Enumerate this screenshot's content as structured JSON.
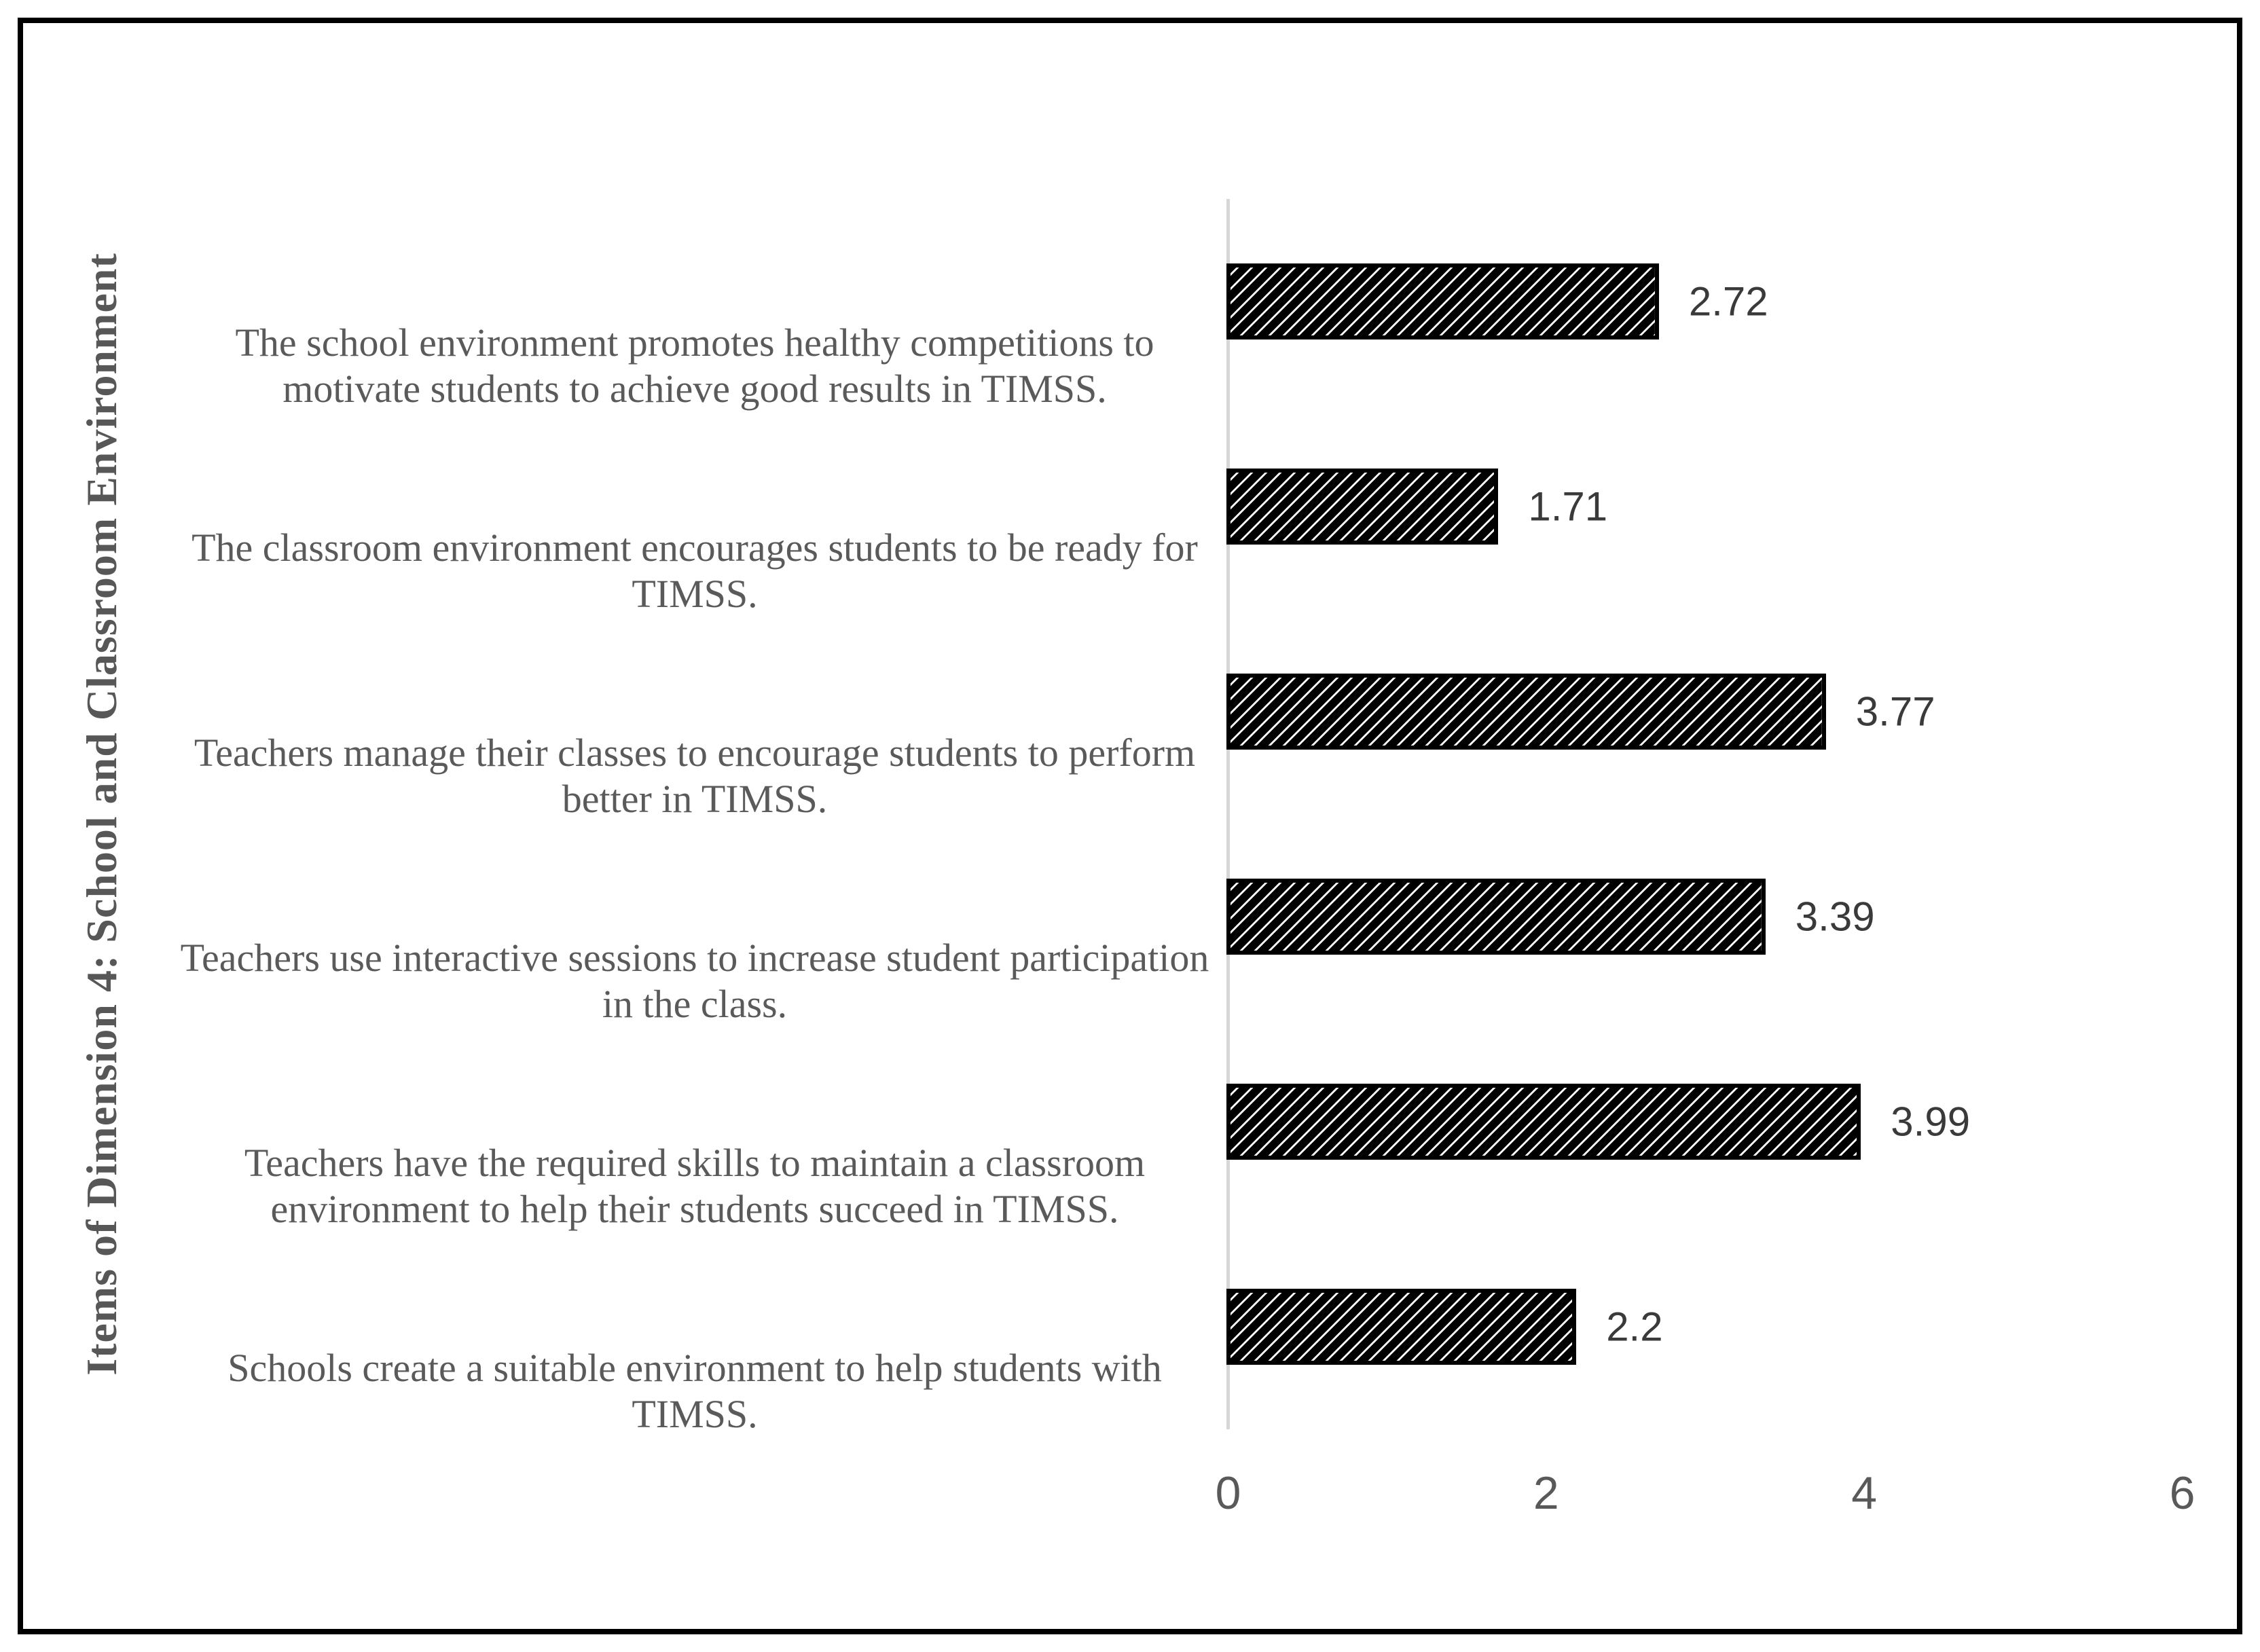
{
  "chart_data": {
    "type": "bar",
    "orientation": "horizontal",
    "title": "",
    "ylabel": "Items of Dimension 4: School and Classroom Environment",
    "xlabel": "",
    "xlim": [
      0,
      6
    ],
    "x_ticks": [
      "0",
      "2",
      "4",
      "6"
    ],
    "x_tick_values": [
      0,
      2,
      4,
      6
    ],
    "grid": "off",
    "legend": "none",
    "bar_fill_style": "black diagonal hatch on white",
    "categories": [
      "The school environment promotes healthy competitions to motivate students to achieve good results in TIMSS.",
      "The classroom environment encourages students to be ready for TIMSS.",
      "Teachers manage their classes to encourage students to perform better in TIMSS.",
      "Teachers use interactive sessions to increase student participation in the class.",
      "Teachers have the required skills to maintain a classroom environment to help their students succeed in TIMSS.",
      "Schools create a suitable environment to help students with TIMSS."
    ],
    "categories_wrapped": [
      {
        "line1": "The school environment promotes healthy competitions to",
        "line2": "motivate students to achieve good results in TIMSS."
      },
      {
        "line1": "The classroom environment encourages students to be ready for",
        "line2": "TIMSS."
      },
      {
        "line1": "Teachers manage their classes to encourage students to perform",
        "line2": "better in TIMSS."
      },
      {
        "line1": "Teachers use interactive sessions to increase student participation",
        "line2": "in the class."
      },
      {
        "line1": "Teachers have the required skills to maintain a classroom",
        "line2": "environment to help their students succeed in TIMSS."
      },
      {
        "line1": "Schools create a suitable environment to help students with",
        "line2": "TIMSS."
      }
    ],
    "values": [
      2.72,
      1.71,
      3.77,
      3.39,
      3.99,
      2.2
    ],
    "value_labels": [
      "2.72",
      "1.71",
      "3.77",
      "3.39",
      "3.99",
      "2.2"
    ],
    "colors": {
      "bar_fill": "#ffffff",
      "bar_hatch": "#000000",
      "bar_border": "#000000",
      "axis_line": "#d6d6d6",
      "tick_text": "#595959",
      "category_text": "#5a5a5a",
      "value_text": "#3a3a3a",
      "frame_border": "#000000",
      "background": "#ffffff"
    }
  }
}
